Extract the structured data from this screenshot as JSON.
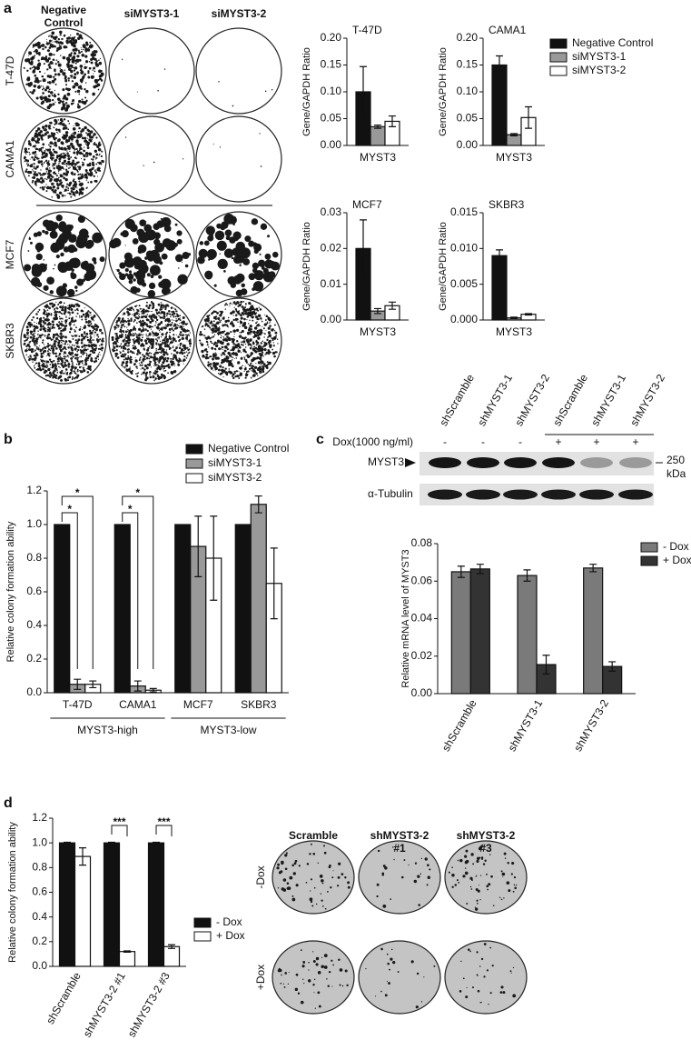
{
  "panel_labels": [
    "a",
    "b",
    "c",
    "d"
  ],
  "panel_a_plates": {
    "columns": [
      "Negative Control",
      "siMYST3-1",
      "siMYST3-2"
    ],
    "rows": [
      "T-47D",
      "CAMA1",
      "MCF7",
      "SKBR3"
    ]
  },
  "panel_c_blot": {
    "lanes": [
      "shScramble",
      "shMYST3-1",
      "shMYST3-2",
      "shScramble",
      "shMYST3-1",
      "shMYST3-2"
    ],
    "treatment_label": "Dox(1000 ng/ml)",
    "treatment": [
      "-",
      "-",
      "-",
      "+",
      "+",
      "+"
    ],
    "bands": [
      "MYST3",
      "α-Tubulin"
    ],
    "marker": "250",
    "marker_unit": "kDa"
  },
  "panel_d_plates": {
    "columns": [
      "Scramble",
      "shMYST3-2 #1",
      "shMYST3-2 #3"
    ],
    "rows": [
      "-Dox",
      "+Dox"
    ]
  },
  "chart_data": [
    {
      "type": "bar",
      "title": "T-47D",
      "y_label": "Gene/GAPDH Ratio",
      "categories": [
        "MYST3"
      ],
      "series": [
        {
          "color": "#111111",
          "values": [
            0.1
          ],
          "errors": [
            0.047
          ]
        },
        {
          "color": "#999999",
          "values": [
            0.035
          ],
          "errors": [
            0.003
          ]
        },
        {
          "color": "#ffffff",
          "values": [
            0.045
          ],
          "errors": [
            0.01
          ]
        }
      ],
      "ylim": [
        0,
        0.2
      ],
      "yticks": [
        {
          "value": 0,
          "label": "0.00"
        },
        0.05,
        {
          "value": 0.1,
          "label": "0.10"
        },
        0.15,
        {
          "value": 0.2,
          "label": "0.20"
        }
      ]
    },
    {
      "type": "bar",
      "title": "CAMA1",
      "y_label": "Gene/GAPDH Ratio",
      "categories": [
        "MYST3"
      ],
      "series": [
        {
          "name": "Negative Control",
          "color": "#111111",
          "values": [
            0.15
          ],
          "errors": [
            0.017
          ]
        },
        {
          "name": "siMYST3-1",
          "color": "#999999",
          "values": [
            0.02
          ],
          "errors": [
            0.002
          ]
        },
        {
          "name": "siMYST3-2",
          "color": "#ffffff",
          "values": [
            0.052
          ],
          "errors": [
            0.02
          ]
        }
      ],
      "ylim": [
        0,
        0.2
      ],
      "yticks": [
        {
          "value": 0,
          "label": "0.00"
        },
        0.05,
        {
          "value": 0.1,
          "label": "0.10"
        },
        0.15,
        {
          "value": 0.2,
          "label": "0.20"
        }
      ],
      "legend": "right"
    },
    {
      "type": "bar",
      "title": "MCF7",
      "y_label": "Gene/GAPDH Ratio",
      "categories": [
        "MYST3"
      ],
      "series": [
        {
          "color": "#111111",
          "values": [
            0.02
          ],
          "errors": [
            0.008
          ]
        },
        {
          "color": "#999999",
          "values": [
            0.0025
          ],
          "errors": [
            0.0007
          ]
        },
        {
          "color": "#ffffff",
          "values": [
            0.004
          ],
          "errors": [
            0.001
          ]
        }
      ],
      "ylim": [
        0,
        0.03
      ],
      "yticks": [
        {
          "value": 0,
          "label": "0.00"
        },
        0.01,
        0.02,
        0.03
      ]
    },
    {
      "type": "bar",
      "title": "SKBR3",
      "y_label": "Gene/GAPDH Ratio",
      "categories": [
        "MYST3"
      ],
      "series": [
        {
          "color": "#111111",
          "values": [
            0.009
          ],
          "errors": [
            0.0008
          ]
        },
        {
          "color": "#999999",
          "values": [
            0.0003
          ],
          "errors": [
            0.0001
          ]
        },
        {
          "color": "#ffffff",
          "values": [
            0.0008
          ],
          "errors": [
            0.0001
          ]
        }
      ],
      "ylim": [
        0,
        0.015
      ],
      "yticks": [
        {
          "value": 0,
          "label": "0.000"
        },
        0.005,
        {
          "value": 0.01,
          "label": "0.010"
        },
        0.015
      ]
    },
    {
      "type": "bar",
      "y_label": "Relative colony formation ability",
      "categories": [
        "T-47D",
        "CAMA1",
        "MCF7",
        "SKBR3"
      ],
      "group_labels": [
        "MYST3-high",
        "MYST3-low"
      ],
      "series": [
        {
          "name": "Negative Control",
          "color": "#111111",
          "values": [
            1,
            1,
            1,
            1
          ]
        },
        {
          "name": "siMYST3-1",
          "color": "#999999",
          "values": [
            0.05,
            0.04,
            0.87,
            1.12
          ],
          "errors": [
            0.03,
            0.03,
            0.18,
            0.05
          ]
        },
        {
          "name": "siMYST3-2",
          "color": "#ffffff",
          "values": [
            0.05,
            0.015,
            0.8,
            0.65
          ],
          "errors": [
            0.02,
            0.01,
            0.25,
            0.21
          ]
        }
      ],
      "annotations": [
        "*",
        "*",
        "*",
        "*"
      ],
      "ylim": [
        0,
        1.2
      ],
      "yticks": [
        {
          "value": 0,
          "label": "0.0"
        },
        0.2,
        0.4,
        0.6,
        0.8,
        {
          "value": 1,
          "label": "1.0"
        },
        1.2
      ],
      "legend": "top right"
    },
    {
      "type": "bar",
      "y_label": "Relative mRNA level of MYST3",
      "categories": [
        "shScramble",
        "shMYST3-1",
        "shMYST3-2"
      ],
      "series": [
        {
          "name": "- Dox",
          "color": "#7a7a7a",
          "values": [
            0.065,
            0.063,
            0.067
          ],
          "errors": [
            0.003,
            0.003,
            0.002
          ]
        },
        {
          "name": "+ Dox",
          "color": "#333333",
          "values": [
            0.0665,
            0.0155,
            0.0145
          ],
          "errors": [
            0.0025,
            0.005,
            0.0025
          ]
        }
      ],
      "ylim": [
        0,
        0.08
      ],
      "yticks": [
        {
          "value": 0,
          "label": "0.00"
        },
        0.02,
        0.04,
        0.06,
        0.08
      ],
      "legend": "right"
    },
    {
      "type": "bar",
      "y_label": "Relative colony formation ability",
      "categories": [
        "shScramble",
        "shMYST3-2 #1",
        "shMYST3-2 #3"
      ],
      "series": [
        {
          "name": "- Dox",
          "color": "#111111",
          "values": [
            1,
            1,
            1
          ],
          "errors": [
            0.005,
            0.005,
            0.005
          ]
        },
        {
          "name": "+ Dox",
          "color": "#ffffff",
          "values": [
            0.89,
            0.12,
            0.16
          ],
          "errors": [
            0.07,
            0.005,
            0.015
          ]
        }
      ],
      "annotations": [
        "***",
        "***"
      ],
      "ylim": [
        0,
        1.2
      ],
      "yticks": [
        {
          "value": 0,
          "label": "0.0"
        },
        0.2,
        0.4,
        0.6,
        0.8,
        {
          "value": 1,
          "label": "1.0"
        },
        1.2
      ],
      "legend": "right"
    }
  ]
}
